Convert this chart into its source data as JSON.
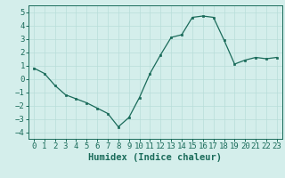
{
  "x": [
    0,
    1,
    2,
    3,
    4,
    5,
    6,
    7,
    8,
    9,
    10,
    11,
    12,
    13,
    14,
    15,
    16,
    17,
    18,
    19,
    20,
    21,
    22,
    23
  ],
  "y": [
    0.8,
    0.4,
    -0.5,
    -1.2,
    -1.5,
    -1.8,
    -2.2,
    -2.6,
    -3.6,
    -2.9,
    -1.4,
    0.4,
    1.8,
    3.1,
    3.3,
    4.6,
    4.7,
    4.6,
    2.9,
    1.1,
    1.4,
    1.6,
    1.5,
    1.6
  ],
  "line_color": "#1a6b5a",
  "marker": "s",
  "marker_size": 2.0,
  "bg_color": "#d4eeeb",
  "grid_color": "#b8ddd9",
  "xlabel": "Humidex (Indice chaleur)",
  "xlim": [
    -0.5,
    23.5
  ],
  "ylim": [
    -4.5,
    5.5
  ],
  "yticks": [
    -4,
    -3,
    -2,
    -1,
    0,
    1,
    2,
    3,
    4,
    5
  ],
  "xticks": [
    0,
    1,
    2,
    3,
    4,
    5,
    6,
    7,
    8,
    9,
    10,
    11,
    12,
    13,
    14,
    15,
    16,
    17,
    18,
    19,
    20,
    21,
    22,
    23
  ],
  "tick_fontsize": 6.5,
  "xlabel_fontsize": 7.5
}
